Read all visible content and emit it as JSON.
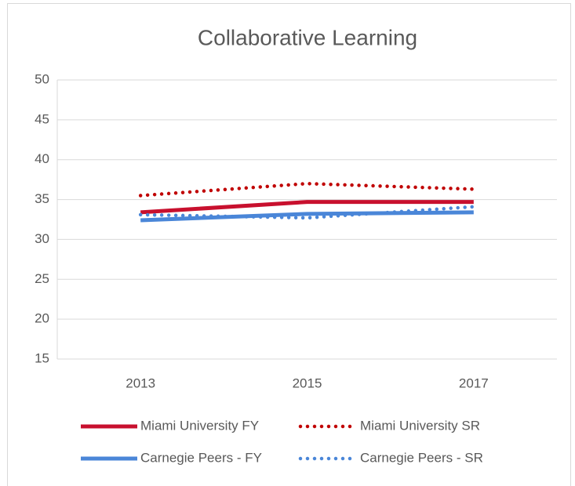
{
  "chart_data": {
    "type": "line",
    "title": "Collaborative Learning",
    "categories": [
      "2013",
      "2015",
      "2017"
    ],
    "series": [
      {
        "name": "Miami University FY",
        "color": "#c8102e",
        "dash": "solid",
        "values": [
          33.4,
          34.7,
          34.7
        ]
      },
      {
        "name": "Miami University SR",
        "color": "#c00000",
        "dash": "dot",
        "values": [
          35.5,
          37.0,
          36.3
        ]
      },
      {
        "name": "Carnegie Peers - FY",
        "color": "#4a86d8",
        "dash": "solid",
        "values": [
          32.4,
          33.2,
          33.4
        ]
      },
      {
        "name": "Carnegie Peers - SR",
        "color": "#4a86d8",
        "dash": "dot",
        "values": [
          33.1,
          32.7,
          34.1
        ]
      }
    ],
    "ylim": [
      15,
      50
    ],
    "yticks": [
      15,
      20,
      25,
      30,
      35,
      40,
      45,
      50
    ],
    "grid": true,
    "legend": "bottom"
  }
}
